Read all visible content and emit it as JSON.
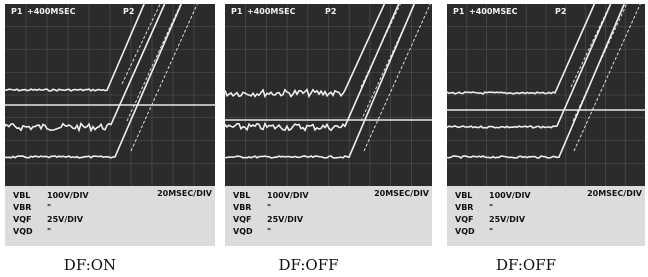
{
  "panels": [
    {
      "marker_p1": "P1",
      "timebase": "+400MSEC",
      "marker_p2": "P2",
      "time_scale": "20MSEC/DIV",
      "channels": [
        {
          "name": "VBL",
          "scale": "100V/DIV"
        },
        {
          "name": "VBR",
          "scale": "\""
        },
        {
          "name": "VQF",
          "scale": "25V/DIV"
        },
        {
          "name": "VQD",
          "scale": "\""
        }
      ],
      "caption": "DF:ON"
    },
    {
      "marker_p1": "P1",
      "timebase": "+400MSEC",
      "marker_p2": "P2",
      "time_scale": "20MSEC/DIV",
      "channels": [
        {
          "name": "VBL",
          "scale": "100V/DIV"
        },
        {
          "name": "VBR",
          "scale": "\""
        },
        {
          "name": "VQF",
          "scale": "25V/DIV"
        },
        {
          "name": "VQD",
          "scale": "\""
        }
      ],
      "caption": "DF:OFF"
    },
    {
      "marker_p1": "P1",
      "timebase": "+400MSEC",
      "marker_p2": "P2",
      "time_scale": "20MSEC/DIV",
      "channels": [
        {
          "name": "VBL",
          "scale": "100V/DIV"
        },
        {
          "name": "VBR",
          "scale": "\""
        },
        {
          "name": "VQF",
          "scale": "25V/DIV"
        },
        {
          "name": "VQD",
          "scale": "\""
        }
      ],
      "caption": "DF:OFF"
    }
  ]
}
